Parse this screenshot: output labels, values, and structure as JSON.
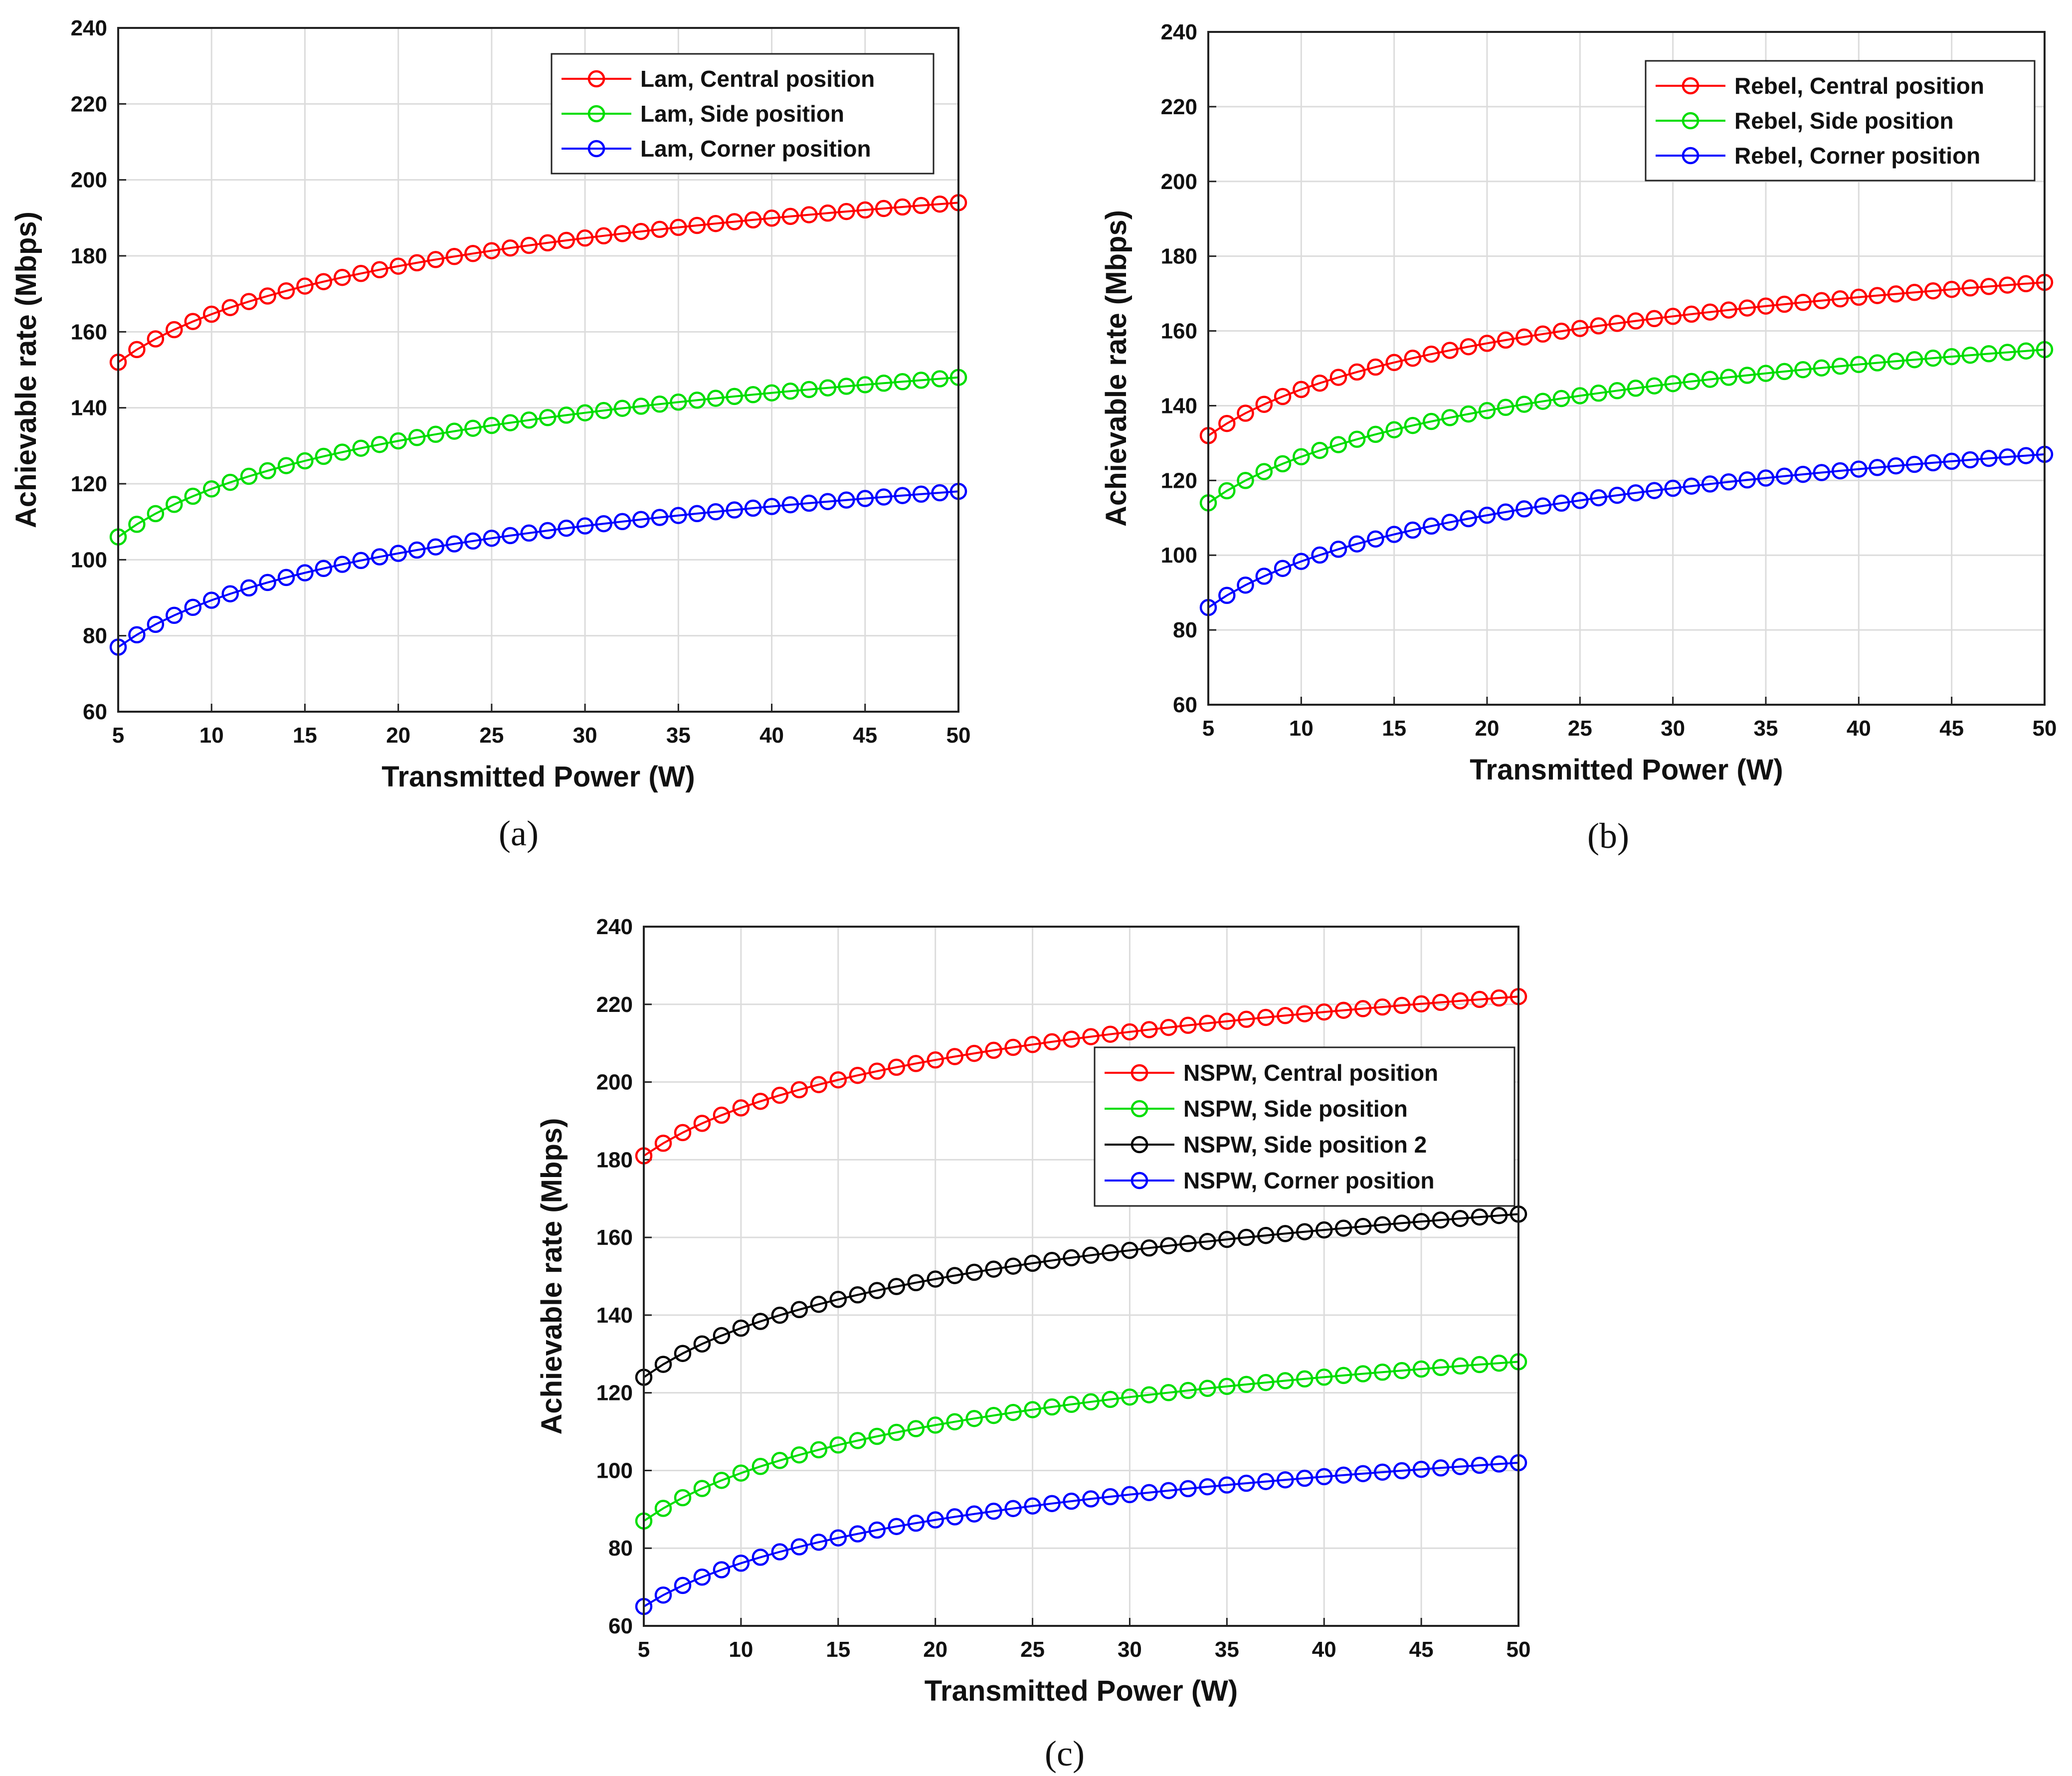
{
  "chart_data": [
    {
      "type": "line",
      "caption": "(a)",
      "xlabel": "Transmitted Power (W)",
      "ylabel": "Achievable rate (Mbps)",
      "xlim": [
        5,
        50
      ],
      "ylim": [
        60,
        240
      ],
      "xticks": [
        "5",
        "10",
        "15",
        "20",
        "25",
        "30",
        "35",
        "40",
        "45",
        "50"
      ],
      "yticks": [
        "60",
        "80",
        "100",
        "120",
        "140",
        "160",
        "180",
        "200",
        "220",
        "240"
      ],
      "grid": true,
      "legend_position": "top-right",
      "series": [
        {
          "name": "Lam, Central position",
          "color": "#ff0000",
          "start": 152,
          "end": 194,
          "x_start": 5,
          "x_end": 50
        },
        {
          "name": "Lam, Side position",
          "color": "#00dd00",
          "start": 106,
          "end": 148,
          "x_start": 5,
          "x_end": 50
        },
        {
          "name": "Lam, Corner position",
          "color": "#0000ff",
          "start": 77,
          "end": 118,
          "x_start": 5,
          "x_end": 50
        }
      ]
    },
    {
      "type": "line",
      "caption": "(b)",
      "xlabel": "Transmitted Power (W)",
      "ylabel": "Achievable rate (Mbps)",
      "xlim": [
        5,
        50
      ],
      "ylim": [
        60,
        240
      ],
      "xticks": [
        "5",
        "10",
        "15",
        "20",
        "25",
        "30",
        "35",
        "40",
        "45",
        "50"
      ],
      "yticks": [
        "60",
        "80",
        "100",
        "120",
        "140",
        "160",
        "180",
        "200",
        "220",
        "240"
      ],
      "grid": true,
      "legend_position": "top-right",
      "series": [
        {
          "name": "Rebel, Central position",
          "color": "#ff0000",
          "start": 132,
          "end": 173,
          "x_start": 5,
          "x_end": 50
        },
        {
          "name": "Rebel, Side position",
          "color": "#00dd00",
          "start": 114,
          "end": 155,
          "x_start": 5,
          "x_end": 50
        },
        {
          "name": "Rebel, Corner position",
          "color": "#0000ff",
          "start": 86,
          "end": 127,
          "x_start": 5,
          "x_end": 50
        }
      ]
    },
    {
      "type": "line",
      "caption": "(c)",
      "xlabel": "Transmitted Power (W)",
      "ylabel": "Achievable rate (Mbps)",
      "xlim": [
        5,
        50
      ],
      "ylim": [
        60,
        240
      ],
      "xticks": [
        "5",
        "10",
        "15",
        "20",
        "25",
        "30",
        "35",
        "40",
        "45",
        "50"
      ],
      "yticks": [
        "60",
        "80",
        "100",
        "120",
        "140",
        "160",
        "180",
        "200",
        "220",
        "240"
      ],
      "grid": true,
      "legend_position": "right",
      "series": [
        {
          "name": "NSPW, Central position",
          "color": "#ff0000",
          "start": 181,
          "end": 222,
          "x_start": 5,
          "x_end": 50
        },
        {
          "name": "NSPW, Side position",
          "color": "#00dd00",
          "start": 87,
          "end": 128,
          "x_start": 5,
          "x_end": 50
        },
        {
          "name": "NSPW, Side position 2",
          "color": "#000000",
          "start": 124,
          "end": 166,
          "x_start": 5,
          "x_end": 50
        },
        {
          "name": "NSPW, Corner position",
          "color": "#0000ff",
          "start": 65,
          "end": 102,
          "x_start": 5,
          "x_end": 50
        }
      ]
    }
  ]
}
